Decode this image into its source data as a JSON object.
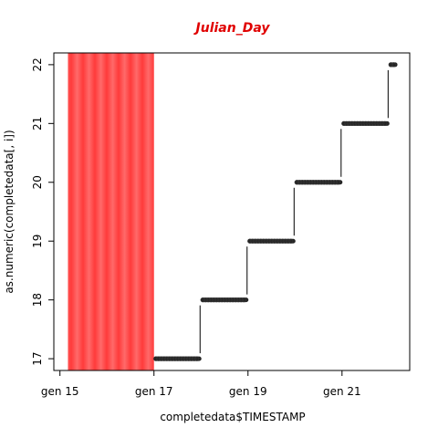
{
  "chart_data": {
    "type": "scatter",
    "title": "Julian_Day",
    "xlabel": "completedata$TIMESTAMP",
    "ylabel": "as.numeric(completedata[, i])",
    "x_ticks": [
      {
        "label": "gen 15",
        "day": 15
      },
      {
        "label": "gen 17",
        "day": 17
      },
      {
        "label": "gen 19",
        "day": 19
      },
      {
        "label": "gen 21",
        "day": 21
      }
    ],
    "y_ticks": [
      17,
      18,
      19,
      20,
      21,
      22
    ],
    "xlim": [
      14.87,
      22.44
    ],
    "ylim": [
      16.8,
      22.2
    ],
    "grid": false,
    "highlight_band": {
      "x_start": 15.17,
      "x_end": 17.0,
      "color": "#ff4444"
    },
    "series": [
      {
        "x_start": 17.0,
        "x_end": 18.0,
        "y": 17,
        "color": "#000000"
      },
      {
        "x_start": 18.0,
        "x_end": 19.0,
        "y": 18,
        "color": "#000000"
      },
      {
        "x_start": 19.0,
        "x_end": 20.0,
        "y": 19,
        "color": "#000000"
      },
      {
        "x_start": 20.0,
        "x_end": 21.0,
        "y": 20,
        "color": "#000000"
      },
      {
        "x_start": 21.0,
        "x_end": 22.0,
        "y": 21,
        "color": "#000000"
      },
      {
        "x_start": 22.0,
        "x_end": 22.17,
        "y": 22,
        "color": "#000000"
      }
    ]
  }
}
